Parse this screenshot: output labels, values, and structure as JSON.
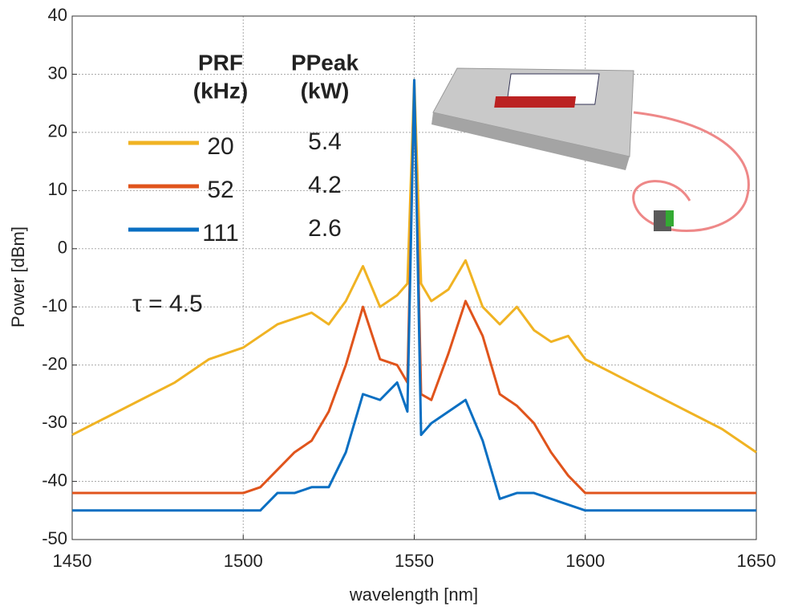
{
  "chart_data": {
    "type": "line",
    "xlabel": "wavelength [nm]",
    "ylabel": "Power [dBm]",
    "x": [
      1450,
      1460,
      1470,
      1480,
      1490,
      1500,
      1505,
      1510,
      1515,
      1520,
      1525,
      1530,
      1535,
      1540,
      1545,
      1548,
      1550,
      1552,
      1555,
      1560,
      1565,
      1570,
      1575,
      1580,
      1585,
      1590,
      1595,
      1600,
      1610,
      1620,
      1630,
      1640,
      1650
    ],
    "series": [
      {
        "name": "111",
        "peak_power": "2.6",
        "color": "#0a6fc2",
        "values": [
          -45,
          -45,
          -45,
          -45,
          -45,
          -45,
          -45,
          -42,
          -42,
          -41,
          -41,
          -35,
          -25,
          -26,
          -23,
          -28,
          29,
          -32,
          -30,
          -28,
          -26,
          -33,
          -43,
          -42,
          -42,
          -43,
          -44,
          -45,
          -45,
          -45,
          -45,
          -45,
          -45
        ]
      },
      {
        "name": "52",
        "peak_power": "4.2",
        "color": "#e0541c",
        "values": [
          -42,
          -42,
          -42,
          -42,
          -42,
          -42,
          -41,
          -38,
          -35,
          -33,
          -28,
          -20,
          -10,
          -19,
          -20,
          -23,
          28,
          -25,
          -26,
          -18,
          -9,
          -15,
          -25,
          -27,
          -30,
          -35,
          -39,
          -42,
          -42,
          -42,
          -42,
          -42,
          -42
        ]
      },
      {
        "name": "20",
        "peak_power": "5.4",
        "color": "#f0b323",
        "values": [
          -32,
          -29,
          -26,
          -23,
          -19,
          -17,
          -15,
          -13,
          -12,
          -11,
          -13,
          -9,
          -3,
          -10,
          -8,
          -6,
          29,
          -6,
          -9,
          -7,
          -2,
          -10,
          -13,
          -10,
          -14,
          -16,
          -15,
          -19,
          -22,
          -25,
          -28,
          -31,
          -35
        ]
      }
    ],
    "legend_headers": [
      [
        "PRF",
        "(kHz)"
      ],
      [
        "PPeak",
        "(kW)"
      ]
    ],
    "annotation": "τ = 4.5",
    "xlim": [
      1450,
      1650
    ],
    "xticks": [
      1450,
      1500,
      1550,
      1600,
      1650
    ],
    "ylim": [
      -50,
      40
    ],
    "yticks": [
      -50,
      -40,
      -30,
      -20,
      -10,
      0,
      10,
      20,
      30,
      40
    ],
    "grid": true
  }
}
